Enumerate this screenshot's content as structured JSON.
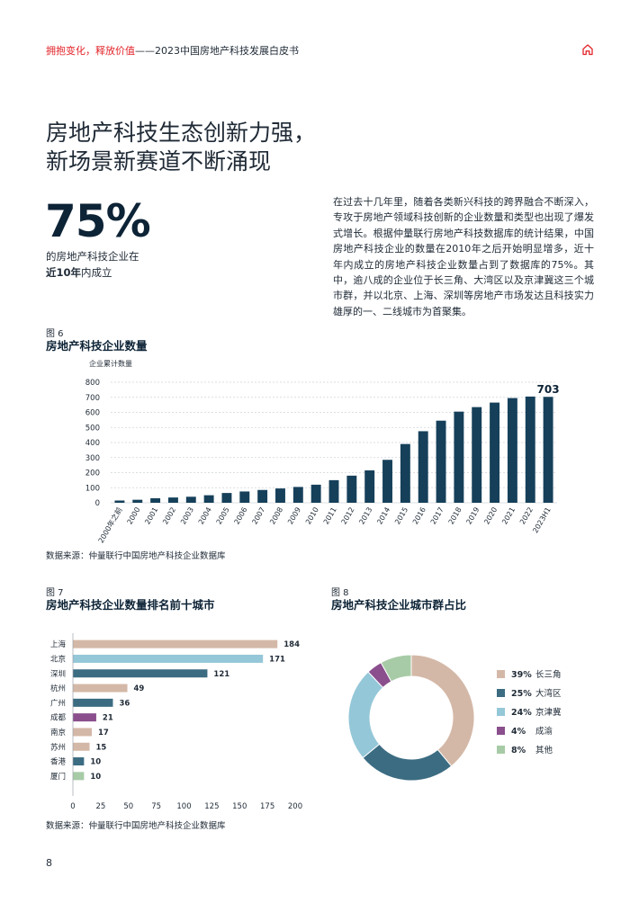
{
  "header": {
    "accent_text": "拥抱变化，释放价值",
    "rest_text": "——2023中国房地产科技发展白皮书",
    "home_icon": "home-icon"
  },
  "headline": {
    "line1": "房地产科技生态创新力强，",
    "line2": "新场景新赛道不断涌现"
  },
  "stat": {
    "value": "75%",
    "line1": "的房地产科技企业在",
    "line2_bold": "近10年",
    "line2_rest": "内成立"
  },
  "body_paragraph": "在过去十几年里，随着各类新兴科技的跨界融合不断深入，专攻于房地产领域科技创新的企业数量和类型也出现了爆发式增长。根据仲量联行房地产科技数据库的统计结果，中国房地产科技企业的数量在2010年之后开始明显增多，近十年内成立的房地产科技企业数量占到了数据库的75%。其中，逾八成的企业位于长三角、大湾区以及京津冀这三个城市群，并以北京、上海、深圳等房地产市场发达且科技实力雄厚的一、二线城市为首聚集。",
  "figures": {
    "fig6": {
      "label": "图 6",
      "title": "房地产科技企业数量"
    },
    "fig7": {
      "label": "图 7",
      "title": "房地产科技企业数量排名前十城市"
    },
    "fig8": {
      "label": "图 8",
      "title": "房地产科技企业城市群占比"
    }
  },
  "source_text": "数据来源：仲量联行中国房地产科技企业数据库",
  "page_number": "8",
  "chart_data": [
    {
      "type": "bar",
      "ylabel": "企业累计数量",
      "ylim": [
        0,
        800
      ],
      "yticks": [
        0,
        100,
        200,
        300,
        400,
        500,
        600,
        700,
        800
      ],
      "grid": true,
      "color": "#16405a",
      "categories": [
        "2000年之前",
        "2000",
        "2001",
        "2002",
        "2003",
        "2004",
        "2005",
        "2006",
        "2007",
        "2008",
        "2009",
        "2010",
        "2011",
        "2012",
        "2013",
        "2014",
        "2015",
        "2016",
        "2017",
        "2018",
        "2019",
        "2020",
        "2021",
        "2022",
        "2023H1"
      ],
      "values": [
        15,
        20,
        30,
        35,
        40,
        50,
        65,
        75,
        85,
        95,
        105,
        120,
        150,
        180,
        215,
        285,
        390,
        475,
        545,
        605,
        635,
        665,
        695,
        705,
        703
      ],
      "annotations": [
        {
          "category": "2023H1",
          "text": "703"
        }
      ]
    },
    {
      "type": "bar",
      "orientation": "horizontal",
      "xlim": [
        0,
        200
      ],
      "xticks": [
        0,
        25,
        50,
        75,
        100,
        125,
        150,
        175,
        200
      ],
      "grid": false,
      "categories": [
        "上海",
        "北京",
        "深圳",
        "杭州",
        "广州",
        "成都",
        "南京",
        "苏州",
        "香港",
        "厦门"
      ],
      "values": [
        184,
        171,
        121,
        49,
        36,
        21,
        17,
        15,
        10,
        10
      ],
      "colors": [
        "#d4b8a7",
        "#94c7d8",
        "#3b6c82",
        "#d4b8a7",
        "#3b6c82",
        "#8a4f8c",
        "#d4b8a7",
        "#d4b8a7",
        "#3b6c82",
        "#a7cba6"
      ]
    },
    {
      "type": "pie",
      "donut": true,
      "legend_position": "right",
      "slices": [
        {
          "label": "长三角",
          "pct_text": "39%",
          "value": 39,
          "color": "#d4b8a7"
        },
        {
          "label": "大湾区",
          "pct_text": "25%",
          "value": 25,
          "color": "#3b6c82"
        },
        {
          "label": "京津冀",
          "pct_text": "24%",
          "value": 24,
          "color": "#94c7d8"
        },
        {
          "label": "成渝",
          "pct_text": "4%",
          "value": 4,
          "color": "#8a4f8c"
        },
        {
          "label": "其他",
          "pct_text": "8%",
          "value": 8,
          "color": "#a7cba6"
        }
      ]
    }
  ]
}
